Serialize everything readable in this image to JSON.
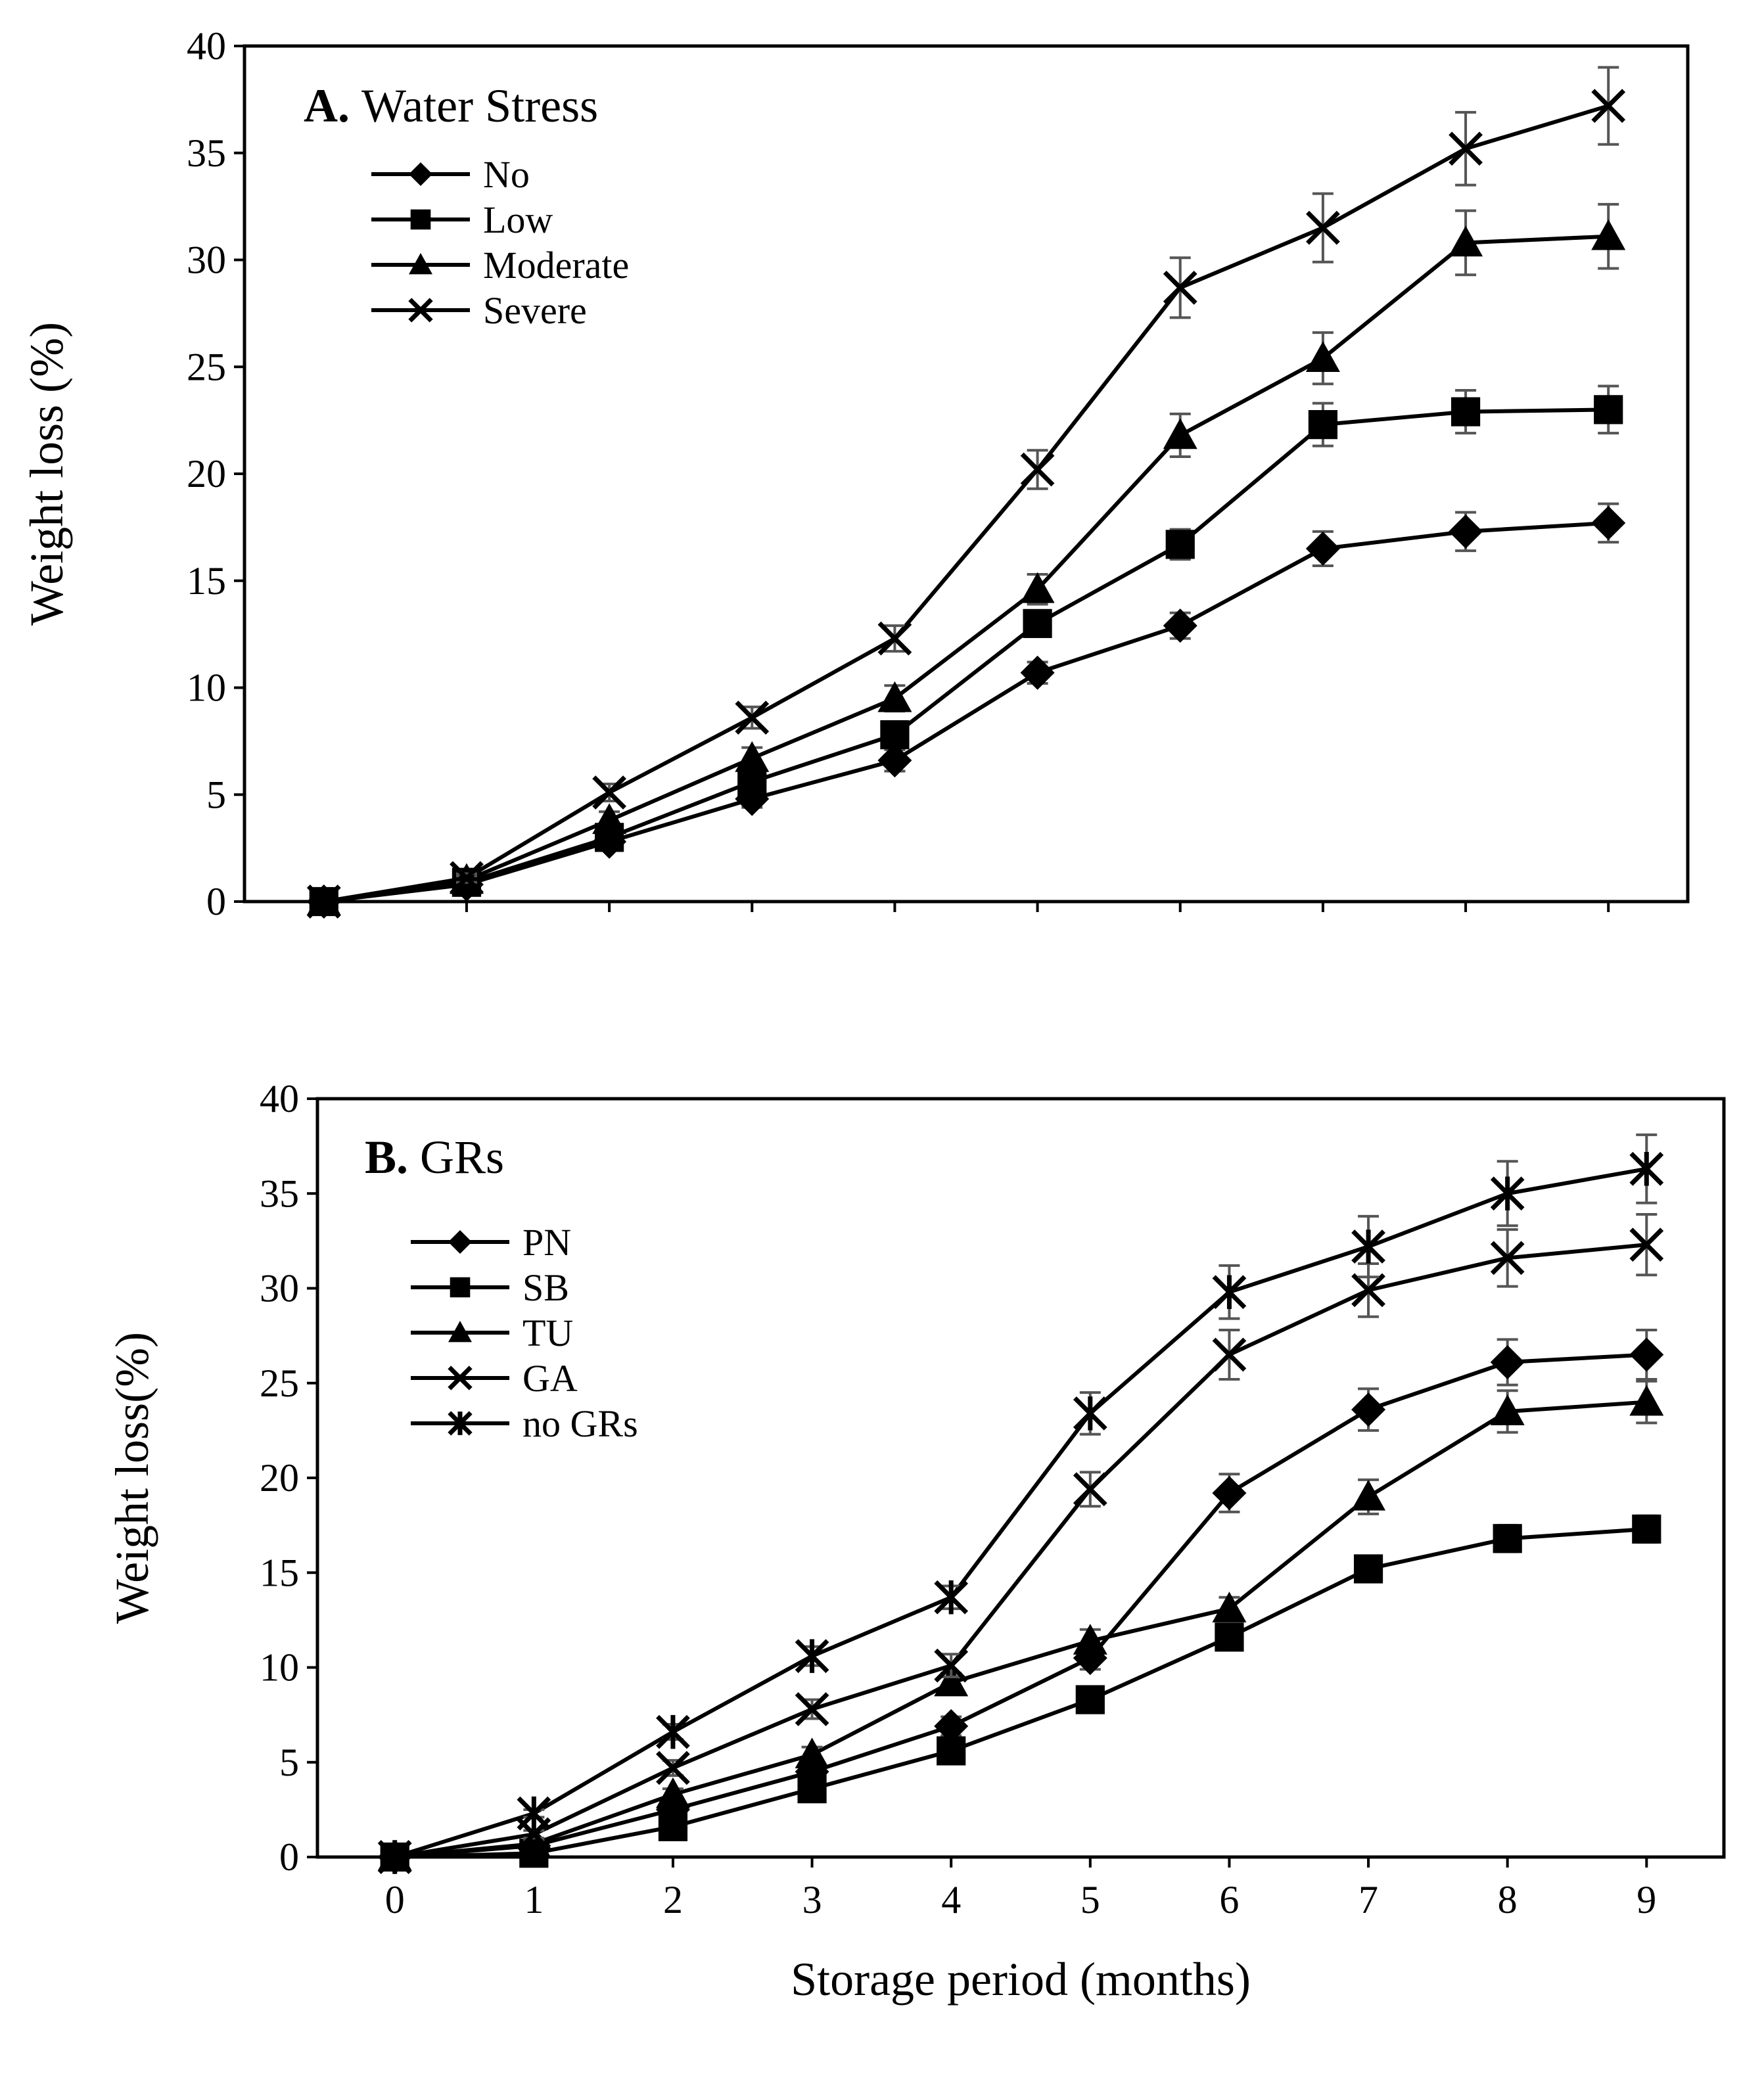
{
  "colors": {
    "line": "#000000",
    "error_bar": "#555555",
    "background": "#ffffff"
  },
  "chart_data": [
    {
      "type": "line",
      "title_letter": "A.",
      "title": "Water Stress",
      "xlabel": "",
      "ylabel": "Weight loss (%)",
      "x": [
        0,
        1,
        2,
        3,
        4,
        5,
        6,
        7,
        8,
        9
      ],
      "xlim": [
        0,
        9
      ],
      "ylim": [
        0,
        40
      ],
      "yticks": [
        "0",
        "5",
        "10",
        "15",
        "20",
        "25",
        "30",
        "35",
        "40"
      ],
      "show_x_tick_labels": false,
      "grid": false,
      "legend_position": "top-left",
      "series": [
        {
          "name": "No",
          "marker": "diamond",
          "values": [
            0,
            0.8,
            2.8,
            4.8,
            6.6,
            10.7,
            12.9,
            16.5,
            17.3,
            17.7
          ],
          "errors": [
            0,
            0.2,
            0.3,
            0.4,
            0.5,
            0.5,
            0.6,
            0.8,
            0.9,
            0.9
          ]
        },
        {
          "name": "Low",
          "marker": "square",
          "values": [
            0,
            0.9,
            3.0,
            5.6,
            7.8,
            13.0,
            16.7,
            22.3,
            22.9,
            23.0
          ],
          "errors": [
            0,
            0.2,
            0.3,
            0.4,
            0.5,
            0.6,
            0.7,
            1.0,
            1.0,
            1.1
          ]
        },
        {
          "name": "Moderate",
          "marker": "triangle",
          "values": [
            0,
            1.0,
            3.8,
            6.7,
            9.5,
            14.6,
            21.8,
            25.4,
            30.8,
            31.1
          ],
          "errors": [
            0,
            0.2,
            0.4,
            0.5,
            0.6,
            0.7,
            1.0,
            1.2,
            1.5,
            1.5
          ]
        },
        {
          "name": "Severe",
          "marker": "x",
          "values": [
            0,
            1.1,
            5.1,
            8.6,
            12.3,
            20.2,
            28.7,
            31.5,
            35.2,
            37.2
          ],
          "errors": [
            0,
            0.2,
            0.4,
            0.5,
            0.6,
            0.9,
            1.4,
            1.6,
            1.7,
            1.8
          ]
        }
      ]
    },
    {
      "type": "line",
      "title_letter": "B.",
      "title": "GRs",
      "xlabel": "Storage period (months)",
      "ylabel": "Weight loss(%)",
      "x": [
        0,
        1,
        2,
        3,
        4,
        5,
        6,
        7,
        8,
        9
      ],
      "xticks": [
        "0",
        "1",
        "2",
        "3",
        "4",
        "5",
        "6",
        "7",
        "8",
        "9"
      ],
      "xlim": [
        0,
        9
      ],
      "ylim": [
        0,
        40
      ],
      "yticks": [
        "0",
        "5",
        "10",
        "15",
        "20",
        "25",
        "30",
        "35",
        "40"
      ],
      "show_x_tick_labels": true,
      "grid": false,
      "legend_position": "top-left",
      "series": [
        {
          "name": "PN",
          "marker": "diamond",
          "values": [
            0,
            0.6,
            2.5,
            4.5,
            6.9,
            10.5,
            19.2,
            23.6,
            26.1,
            26.5
          ],
          "errors": [
            0,
            0.2,
            0.3,
            0.4,
            0.5,
            0.6,
            1.0,
            1.1,
            1.2,
            1.3
          ]
        },
        {
          "name": "SB",
          "marker": "square",
          "values": [
            0,
            0.2,
            1.6,
            3.6,
            5.6,
            8.3,
            11.6,
            15.2,
            16.8,
            17.3
          ],
          "errors": [
            0,
            0.1,
            0.2,
            0.3,
            0.4,
            0.5,
            0.6,
            0.6,
            0.7,
            0.7
          ]
        },
        {
          "name": "TU",
          "marker": "triangle",
          "values": [
            0,
            0.7,
            3.3,
            5.4,
            9.2,
            11.4,
            13.1,
            19.0,
            23.5,
            24.0
          ],
          "errors": [
            0,
            0.2,
            0.3,
            0.4,
            0.5,
            0.6,
            0.6,
            0.9,
            1.1,
            1.1
          ]
        },
        {
          "name": "GA",
          "marker": "x",
          "values": [
            0,
            1.2,
            4.7,
            7.8,
            10.1,
            19.4,
            26.5,
            29.9,
            31.6,
            32.3
          ],
          "errors": [
            0,
            0.2,
            0.4,
            0.5,
            0.6,
            0.9,
            1.3,
            1.4,
            1.5,
            1.6
          ]
        },
        {
          "name": "no GRs",
          "marker": "star",
          "values": [
            0,
            2.3,
            6.6,
            10.6,
            13.7,
            23.4,
            29.8,
            32.2,
            35.0,
            36.3
          ],
          "errors": [
            0,
            0.2,
            0.4,
            0.5,
            0.6,
            1.1,
            1.4,
            1.6,
            1.7,
            1.8
          ]
        }
      ]
    }
  ]
}
